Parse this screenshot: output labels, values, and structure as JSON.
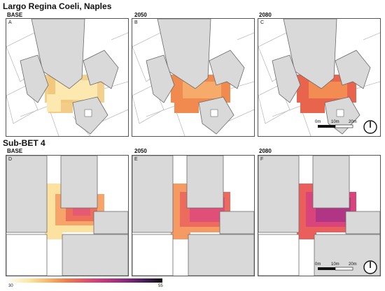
{
  "sections": [
    {
      "title": "Largo Regina Coeli, Naples",
      "panels": [
        {
          "scenario": "BASE",
          "letter": "A"
        },
        {
          "scenario": "2050",
          "letter": "B"
        },
        {
          "scenario": "2080",
          "letter": "C"
        }
      ]
    },
    {
      "title": "Sub-BET 4",
      "panels": [
        {
          "scenario": "BASE",
          "letter": "D"
        },
        {
          "scenario": "2050",
          "letter": "E"
        },
        {
          "scenario": "2080",
          "letter": "F"
        }
      ]
    }
  ],
  "scale_bar": {
    "labels": [
      "0m",
      "10m",
      "20m"
    ]
  },
  "colorbar": {
    "min_label": "30",
    "max_label": "55",
    "colors": [
      "#fffbea",
      "#fbe6a2",
      "#f9b56a",
      "#f07a4a",
      "#e2506a",
      "#c2377e",
      "#8e2a7e",
      "#4b1f5e",
      "#111111"
    ]
  },
  "colors": {
    "building": "#d9d9d9",
    "building_stroke": "#6b6b6b",
    "street_lines": "#bdbdbd"
  }
}
